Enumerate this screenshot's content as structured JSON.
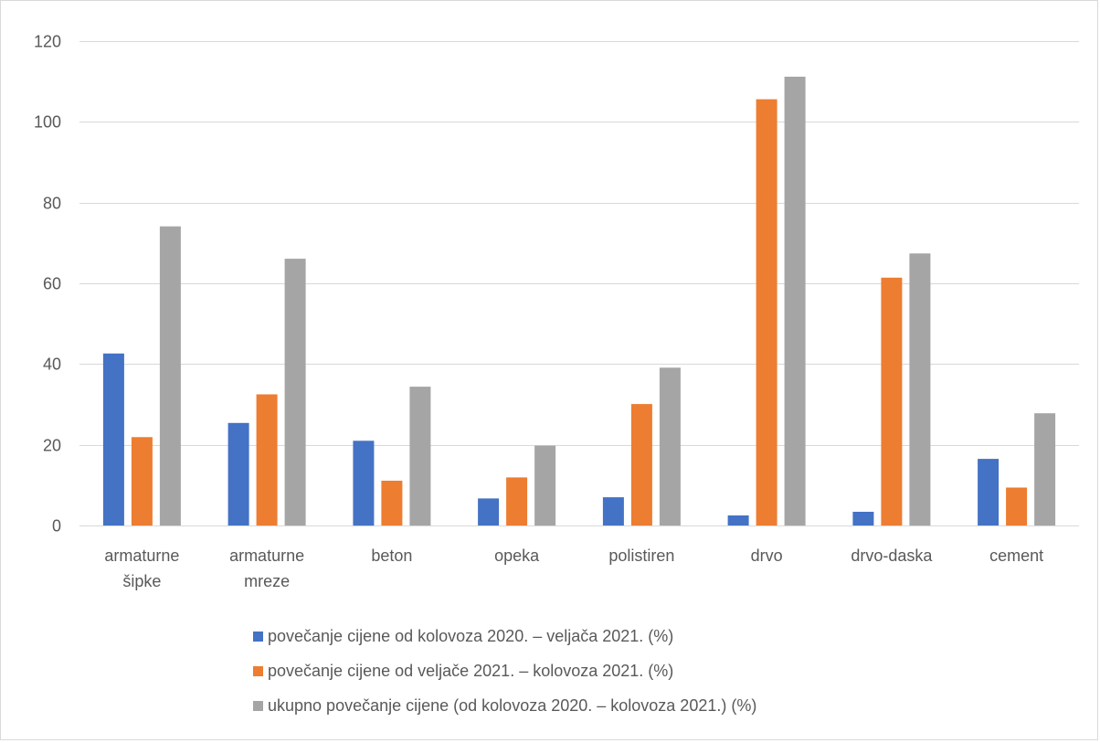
{
  "chart_data": {
    "type": "bar",
    "title": "",
    "xlabel": "",
    "ylabel": "",
    "ylim": [
      0,
      120
    ],
    "yticks": [
      0,
      20,
      40,
      60,
      80,
      100,
      120
    ],
    "grid": true,
    "legend_position": "bottom",
    "categories": [
      [
        "armaturne",
        "šipke"
      ],
      [
        "armaturne",
        "mreze"
      ],
      [
        "beton"
      ],
      [
        "opeka"
      ],
      [
        "polistiren"
      ],
      [
        "drvo"
      ],
      [
        "drvo-daska"
      ],
      [
        "cement"
      ]
    ],
    "series": [
      {
        "name": "povečanje cijene od kolovoza 2020. – veljača 2021. (%)",
        "color": "#4472c4",
        "values": [
          42.6,
          25.4,
          21.0,
          6.7,
          7.0,
          2.5,
          3.4,
          16.5
        ]
      },
      {
        "name": "povečanje cijene od veljače 2021. – kolovoza 2021. (%)",
        "color": "#ed7d31",
        "values": [
          21.9,
          32.5,
          11.1,
          11.9,
          30.1,
          105.6,
          61.4,
          9.4
        ]
      },
      {
        "name": "ukupno povečanje cijene (od kolovoza 2020. – kolovoza 2021.) (%)",
        "color": "#a5a5a5",
        "values": [
          74.1,
          66.1,
          34.4,
          19.8,
          39.1,
          111.2,
          67.4,
          27.8
        ]
      }
    ]
  }
}
